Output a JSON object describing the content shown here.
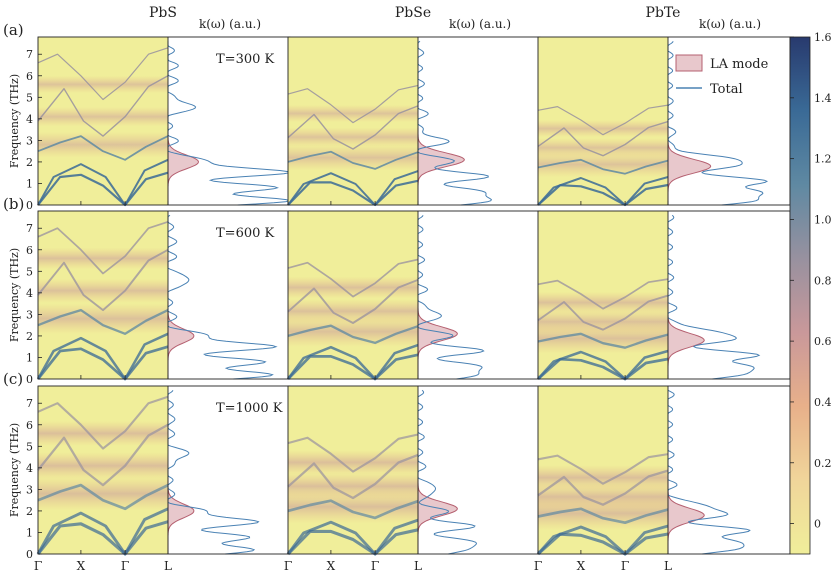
{
  "chart_data": {
    "type": "heatmap",
    "materials": [
      "PbS",
      "PbSe",
      "PbTe"
    ],
    "kappa_label": "k(ω) (a.u.)",
    "ylabel": "Frequency (THz)",
    "ylim": [
      0,
      7.8
    ],
    "yticks": [
      "0",
      "1",
      "2",
      "3",
      "4",
      "5",
      "6",
      "7"
    ],
    "kpath": [
      "Γ",
      "X",
      "Γ",
      "L"
    ],
    "rows": [
      {
        "panel": "(a)",
        "temperature": "T=300 K"
      },
      {
        "panel": "(b)",
        "temperature": "T=600 K"
      },
      {
        "panel": "(c)",
        "temperature": "T=1000 K"
      }
    ],
    "legend": {
      "la_label": "LA mode",
      "total_label": "Total",
      "position": "top-right"
    },
    "colorbar": {
      "ticks": [
        "1.6",
        "1.4",
        "1.2",
        "1.0",
        "0.8",
        "0.6",
        "0.4",
        "0.2",
        "0"
      ],
      "range": [
        -0.1,
        1.6
      ],
      "colors": [
        "#f0ee9a",
        "#f0d59a",
        "#e8b08a",
        "#c9989a",
        "#98919f",
        "#5f89a2",
        "#3a6a96",
        "#283a6e"
      ]
    },
    "colors": {
      "la_fill": "#e8c8cc",
      "la_edge": "#b56070",
      "total_line": "#4a82b4",
      "heat_bg": "#f0ee9a"
    }
  }
}
